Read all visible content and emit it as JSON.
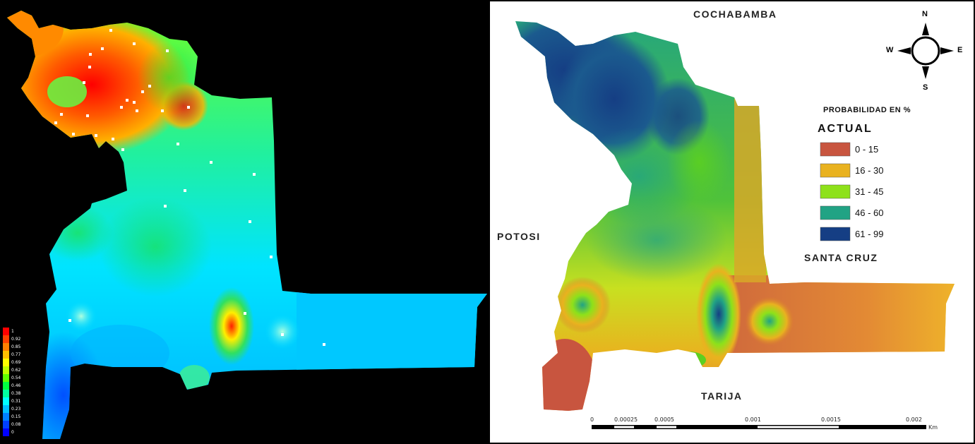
{
  "left_map": {
    "colorbar": {
      "ticks": [
        "1",
        "0.92",
        "0.85",
        "0.77",
        "0.69",
        "0.62",
        "0.54",
        "0.46",
        "0.38",
        "0.31",
        "0.23",
        "0.15",
        "0.08",
        "0"
      ],
      "colors": [
        "#ff0000",
        "#ff4000",
        "#ff8000",
        "#ffbf00",
        "#ffff00",
        "#bfff00",
        "#60ff00",
        "#00ff40",
        "#00ffa0",
        "#00ffff",
        "#00c0ff",
        "#0080ff",
        "#0040ff",
        "#0000ff"
      ]
    }
  },
  "right_map": {
    "regions": {
      "north": "COCHABAMBA",
      "west": "POTOSI",
      "east": "SANTA CRUZ",
      "south": "TARIJA"
    },
    "compass": {
      "n": "N",
      "s": "S",
      "e": "E",
      "w": "W"
    },
    "legend": {
      "title": "PROBABILIDAD EN %",
      "subtitle": "ACTUAL",
      "items": [
        {
          "label": "0 - 15",
          "color": "#c8553f"
        },
        {
          "label": "16 - 30",
          "color": "#e9b21f"
        },
        {
          "label": "31 - 45",
          "color": "#8ee11a"
        },
        {
          "label": "46 - 60",
          "color": "#21a384"
        },
        {
          "label": "61 - 99",
          "color": "#153e84"
        }
      ]
    },
    "scale_bar": {
      "labels": [
        "0",
        "0.00025",
        "0.0005",
        "0.001",
        "0.0015",
        "0.002"
      ],
      "unit": "Km"
    }
  }
}
